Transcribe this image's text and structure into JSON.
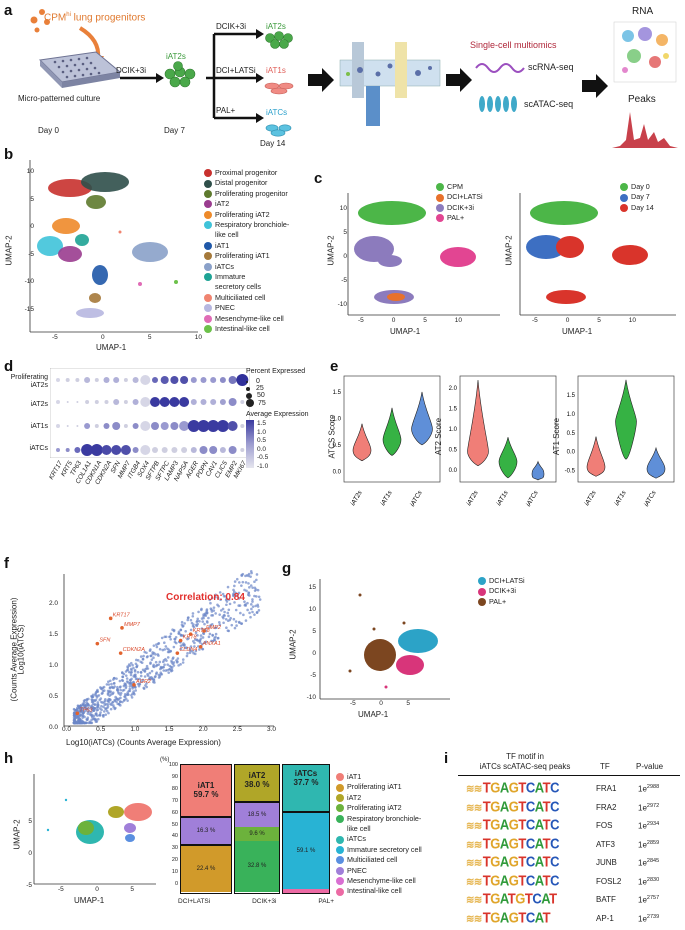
{
  "panels": {
    "a": "a",
    "b": "b",
    "c": "c",
    "d": "d",
    "e": "e",
    "f": "f",
    "g": "g",
    "h": "h",
    "i": "i"
  },
  "panel_a": {
    "cpm_prefix": "CPM",
    "cpm_sup": "hi",
    "cpm_suffix": " lung progenitors",
    "culture_label": "Micro-patterned culture",
    "arrow1_label": "DCIK+3i",
    "iat2s_label": "iAT2s",
    "day0": "Day 0",
    "day7": "Day 7",
    "day14": "Day 14",
    "branch1": "DCIK+3i",
    "branch2": "DCI+LATSi",
    "branch3": "PAL+",
    "out1": "iAT2s",
    "out2": "iAT1s",
    "out3": "iATCs",
    "multiomics": "Single-cell multiomics",
    "scrna": "scRNA-seq",
    "scatac": "scATAC-seq",
    "rna": "RNA",
    "peaks": "Peaks"
  },
  "panel_b": {
    "xlabel": "UMAP-1",
    "ylabel": "UMAP-2",
    "xticks": [
      "-5",
      "0",
      "5",
      "10"
    ],
    "yticks": [
      "10",
      "5",
      "0",
      "-5",
      "-10",
      "-15"
    ],
    "legend": [
      {
        "label": "Proximal progenitor",
        "color": "#c8312e"
      },
      {
        "label": "Distal progenitor",
        "color": "#2f4f4a"
      },
      {
        "label": "Proliferating progenitor",
        "color": "#5e7a2e"
      },
      {
        "label": "iAT2",
        "color": "#9a3c8f"
      },
      {
        "label": "Proliferating iAT2",
        "color": "#ee8a2a"
      },
      {
        "label": "Respiratory bronchiole-",
        "color": "#3fc3d9"
      },
      {
        "label": "like cell",
        "color": ""
      },
      {
        "label": "iAT1",
        "color": "#1f58a8"
      },
      {
        "label": "Proliferating iAT1",
        "color": "#a5793a"
      },
      {
        "label": "iATCs",
        "color": "#8aa1c9"
      },
      {
        "label": "Immature",
        "color": "#1ea395"
      },
      {
        "label": "secretory cells",
        "color": ""
      },
      {
        "label": "Multiciliated cell",
        "color": "#f08470"
      },
      {
        "label": "PNEC",
        "color": "#b7b7e0"
      },
      {
        "label": "Mesenchyme-like cell",
        "color": "#e06cb6"
      },
      {
        "label": "Intestinal-like cell",
        "color": "#6cc14a"
      }
    ]
  },
  "panel_c": {
    "xlabel": "UMAP-1",
    "ylabel": "UMAP-2",
    "xticks": [
      "-5",
      "0",
      "5",
      "10"
    ],
    "yticks": [
      "10",
      "5",
      "0",
      "-5",
      "-10"
    ],
    "legend1": [
      {
        "label": "CPM",
        "color": "#4cb648"
      },
      {
        "label": "DCI+LATSi",
        "color": "#e8712c"
      },
      {
        "label": "DCIK+3i",
        "color": "#8c7bbd"
      },
      {
        "label": "PAL+",
        "color": "#e24592"
      }
    ],
    "legend2": [
      {
        "label": "Day 0",
        "color": "#4cb648"
      },
      {
        "label": "Day 7",
        "color": "#3d6fc2"
      },
      {
        "label": "Day 14",
        "color": "#d9342b"
      }
    ]
  },
  "panel_d": {
    "rows": [
      "Proliferating\niAT2s",
      "iAT2s",
      "iAT1s",
      "iATCs"
    ],
    "row1a": "Proliferating",
    "row1b": "iAT2s",
    "genes": [
      "KRT17",
      "KRT5",
      "TP63",
      "COL1A1",
      "CDKN1A",
      "CDKN2A",
      "SFN",
      "MMP7",
      "ITGB4",
      "SOX4",
      "SFTPB",
      "SFTPC",
      "LAMP3",
      "NAPSA",
      "AGER",
      "PDPN",
      "CAV1",
      "CLIC5",
      "EMP2",
      "MKI67"
    ],
    "size_title": "Percent Expressed",
    "size_labels": [
      "0",
      "25",
      "50",
      "75"
    ],
    "color_title": "Average Expression",
    "color_ticks": [
      "1.5",
      "1.0",
      "0.5",
      "0.0",
      "-0.5",
      "-1.0"
    ]
  },
  "panel_e": {
    "plots": [
      {
        "ylabel": "ATCS Score",
        "yticks": [
          "1.5",
          "1.0",
          "0.5",
          "0.0"
        ],
        "cats": [
          "iAT2s",
          "iAT1s",
          "iATCs"
        ]
      },
      {
        "ylabel": "AT2 Score",
        "yticks": [
          "2.0",
          "1.5",
          "1.0",
          "0.5",
          "0.0"
        ],
        "cats": [
          "iAT2s",
          "iAT1s",
          "iATCs"
        ]
      },
      {
        "ylabel": "AT1 Score",
        "yticks": [
          "1.5",
          "1.0",
          "0.5",
          "0.0",
          "-0.5"
        ],
        "cats": [
          "iAT2s",
          "iAT1s",
          "iATCs"
        ]
      }
    ],
    "colors": [
      "#f07e77",
      "#36b244",
      "#5f8fd8"
    ]
  },
  "panel_f": {
    "correlation": "Correlation: 0.84",
    "ylabel1": "Log10(iATCS)",
    "ylabel2": "(Counts Average Expression)",
    "xlabel": "Log10(iATCs) (Counts Average Expression)",
    "xticks": [
      "0.0",
      "0.5",
      "1.0",
      "1.5",
      "2.0",
      "2.5",
      "3.0"
    ],
    "yticks": [
      "2.0",
      "1.5",
      "1.0",
      "0.5",
      "0.0"
    ],
    "genes": [
      "KRT17",
      "MMP7",
      "SFN",
      "CDKN2A",
      "CLDN4",
      "KRT18",
      "KRT8",
      "EMP2",
      "ANXA1",
      "AGR2",
      "TP63"
    ]
  },
  "panel_g": {
    "xlabel": "UMAP-1",
    "ylabel": "UMAP-2",
    "xticks": [
      "-5",
      "0",
      "5"
    ],
    "yticks": [
      "15",
      "10",
      "5",
      "0",
      "-5",
      "-10"
    ],
    "legend": [
      {
        "label": "DCI+LATSi",
        "color": "#2ca3c7"
      },
      {
        "label": "DCIK+3i",
        "color": "#d8357a"
      },
      {
        "label": "PAL+",
        "color": "#7c4620"
      }
    ]
  },
  "panel_h": {
    "xlabel": "UMAP-1",
    "ylabel": "UMAP-2",
    "xticks": [
      "-5",
      "0",
      "5"
    ],
    "yticks": [
      "5",
      "0",
      "-5"
    ],
    "bar_y_unit": "(%)",
    "bar_yticks": [
      "100",
      "90",
      "80",
      "70",
      "60",
      "50",
      "40",
      "30",
      "20",
      "10",
      "0"
    ],
    "bars": [
      {
        "cond": "DCI+LATSi",
        "main": "iAT1",
        "main_pct": "59.7 %",
        "pct2": "16.3 %",
        "pct3": "22.4 %"
      },
      {
        "cond": "DCIK+3i",
        "main": "iAT2",
        "main_pct": "38.0 %",
        "pct2": "18.5 %",
        "pct3": "9.6 %",
        "pct4": "32.8 %"
      },
      {
        "cond": "PAL+",
        "main": "iATCs",
        "main_pct": "37.7 %",
        "pct2": "59.1 %"
      }
    ],
    "legend": [
      {
        "label": "iAT1",
        "color": "#f07e77"
      },
      {
        "label": "Proliferating iAT1",
        "color": "#d19a2a"
      },
      {
        "label": "iAT2",
        "color": "#b0a628"
      },
      {
        "label": "Proliferating iAT2",
        "color": "#6cb23c"
      },
      {
        "label": "Respiratory bronchiole-",
        "color": "#39b25a"
      },
      {
        "label": "like cell",
        "color": ""
      },
      {
        "label": "iATCs",
        "color": "#2fb7b0"
      },
      {
        "label": "Immature secretory cell",
        "color": "#28b3d4"
      },
      {
        "label": "Multiciliated cell",
        "color": "#5a8fe0"
      },
      {
        "label": "PNEC",
        "color": "#a07fd9"
      },
      {
        "label": "Mesenchyme-like cell",
        "color": "#d96fd2"
      },
      {
        "label": "Intestinal-like cell",
        "color": "#ec6aa4"
      }
    ]
  },
  "panel_i": {
    "header_motif1": "TF motif in",
    "header_motif2": "iATCs scATAC-seq peaks",
    "header_tf": "TF",
    "header_p": "P-value",
    "rows": [
      {
        "motif": "TGAGTCATC",
        "tf": "FRA1",
        "p_base": "1e",
        "p_exp": "2988"
      },
      {
        "motif": "TGAGTCATC",
        "tf": "FRA2",
        "p_base": "1e",
        "p_exp": "2972"
      },
      {
        "motif": "TGAGTCATC",
        "tf": "FOS",
        "p_base": "1e",
        "p_exp": "2934"
      },
      {
        "motif": "TGAGTCATC",
        "tf": "ATF3",
        "p_base": "1e",
        "p_exp": "2859"
      },
      {
        "motif": "TGAGTCATC",
        "tf": "JUNB",
        "p_base": "1e",
        "p_exp": "2845"
      },
      {
        "motif": "TGAGTCATC",
        "tf": "FOSL2",
        "p_base": "1e",
        "p_exp": "2830"
      },
      {
        "motif": "TGATGTCAT",
        "tf": "BATF",
        "p_base": "1e",
        "p_exp": "2757"
      },
      {
        "motif": "TGAGTCAT",
        "tf": "AP-1",
        "p_base": "1e",
        "p_exp": "2739"
      }
    ]
  }
}
